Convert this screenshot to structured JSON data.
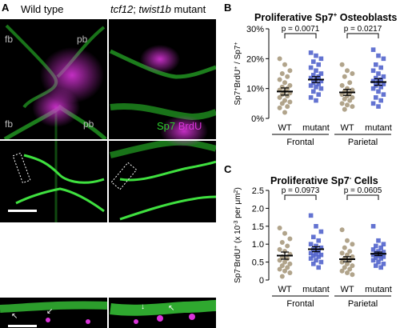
{
  "panel_A": {
    "letter": "A",
    "col_wt": "Wild type",
    "col_mutant_g1": "tcf12",
    "col_mutant_sep": "; ",
    "col_mutant_g2": "twist1b",
    "col_mutant_suffix": " mutant",
    "fb": "fb",
    "pb": "pb",
    "legend_sp7": "Sp7",
    "legend_brdu": "BrdU",
    "sp7_color": "#2ed12e",
    "brdu_color": "#d933d9"
  },
  "panel_B": {
    "letter": "B",
    "title_prefix": "Proliferative  Sp7",
    "title_sup": "+",
    "title_suffix": " Osteoblasts"
  },
  "panel_C": {
    "letter": "C",
    "title_prefix": "Proliferative Sp7",
    "title_sup": "-",
    "title_suffix": " Cells"
  },
  "colors": {
    "wt": "#a89a7e",
    "mutant": "#5264cc"
  },
  "chart_data": [
    {
      "type": "scatter",
      "title": "Proliferative Sp7+ Osteoblasts",
      "ylabel": "Sp7+BrdU+ / Sp7+",
      "yticks": [
        "0%",
        "10%",
        "20%",
        "30%"
      ],
      "ylim": [
        0,
        30
      ],
      "categories": [
        "WT",
        "mutant",
        "WT",
        "mutant"
      ],
      "groups": [
        "Frontal",
        "Parietal"
      ],
      "pvalues": [
        "p = 0.0071",
        "p = 0.0217"
      ],
      "means": [
        9,
        13,
        8.7,
        12.2
      ],
      "sems": [
        1.2,
        1.0,
        1.0,
        1.1
      ],
      "series": [
        {
          "values": [
            20,
            18,
            16,
            15,
            14,
            13,
            12,
            11,
            10.5,
            10,
            9.5,
            9,
            8.5,
            8,
            7.5,
            7,
            6,
            5.5,
            5,
            4,
            3.5,
            2
          ]
        },
        {
          "values": [
            22,
            21,
            20,
            19,
            18,
            17,
            16,
            15,
            14.5,
            14,
            13.5,
            13,
            12.5,
            12,
            11.5,
            11,
            10.5,
            10,
            9,
            8,
            7,
            6
          ]
        },
        {
          "values": [
            18,
            16,
            15,
            14,
            12,
            11,
            10,
            9.5,
            9,
            8.5,
            8,
            7.5,
            7,
            6.5,
            6,
            5,
            4.5,
            4,
            3
          ]
        },
        {
          "values": [
            23,
            21,
            20,
            18,
            17,
            16,
            15,
            14,
            13.5,
            13,
            12.5,
            12,
            11.5,
            11,
            10.5,
            10,
            9,
            8,
            7,
            6,
            5,
            4
          ]
        }
      ]
    },
    {
      "type": "scatter",
      "title": "Proliferative Sp7- Cells",
      "ylabel": "Sp7-BrdU+ (x 10-3 per μm²)",
      "yticks": [
        "0",
        "0.5",
        "1.0",
        "1.5",
        "2.0",
        "2.5"
      ],
      "ylim": [
        0,
        2.5
      ],
      "categories": [
        "WT",
        "mutant",
        "WT",
        "mutant"
      ],
      "groups": [
        "Frontal",
        "Parietal"
      ],
      "pvalues": [
        "p = 0.0973",
        "p = 0.0605"
      ],
      "means": [
        0.68,
        0.86,
        0.58,
        0.73
      ],
      "sems": [
        0.1,
        0.07,
        0.07,
        0.05
      ],
      "series": [
        {
          "values": [
            1.45,
            1.3,
            1.15,
            1.05,
            0.95,
            0.85,
            0.8,
            0.72,
            0.65,
            0.6,
            0.55,
            0.5,
            0.45,
            0.4,
            0.35,
            0.3,
            0.25,
            0.2,
            0.1
          ]
        },
        {
          "values": [
            1.8,
            1.5,
            1.35,
            1.2,
            1.1,
            1.0,
            0.95,
            0.9,
            0.85,
            0.8,
            0.75,
            0.72,
            0.7,
            0.68,
            0.65,
            0.6,
            0.55,
            0.5,
            0.45,
            0.35
          ]
        },
        {
          "values": [
            1.4,
            1.1,
            1.0,
            0.9,
            0.8,
            0.75,
            0.7,
            0.65,
            0.6,
            0.55,
            0.5,
            0.45,
            0.4,
            0.35,
            0.3,
            0.25,
            0.2,
            0.15
          ]
        },
        {
          "values": [
            1.5,
            1.1,
            1.0,
            0.95,
            0.9,
            0.85,
            0.8,
            0.78,
            0.75,
            0.72,
            0.7,
            0.68,
            0.65,
            0.62,
            0.6,
            0.55,
            0.5,
            0.45,
            0.4,
            0.35
          ]
        }
      ]
    }
  ]
}
